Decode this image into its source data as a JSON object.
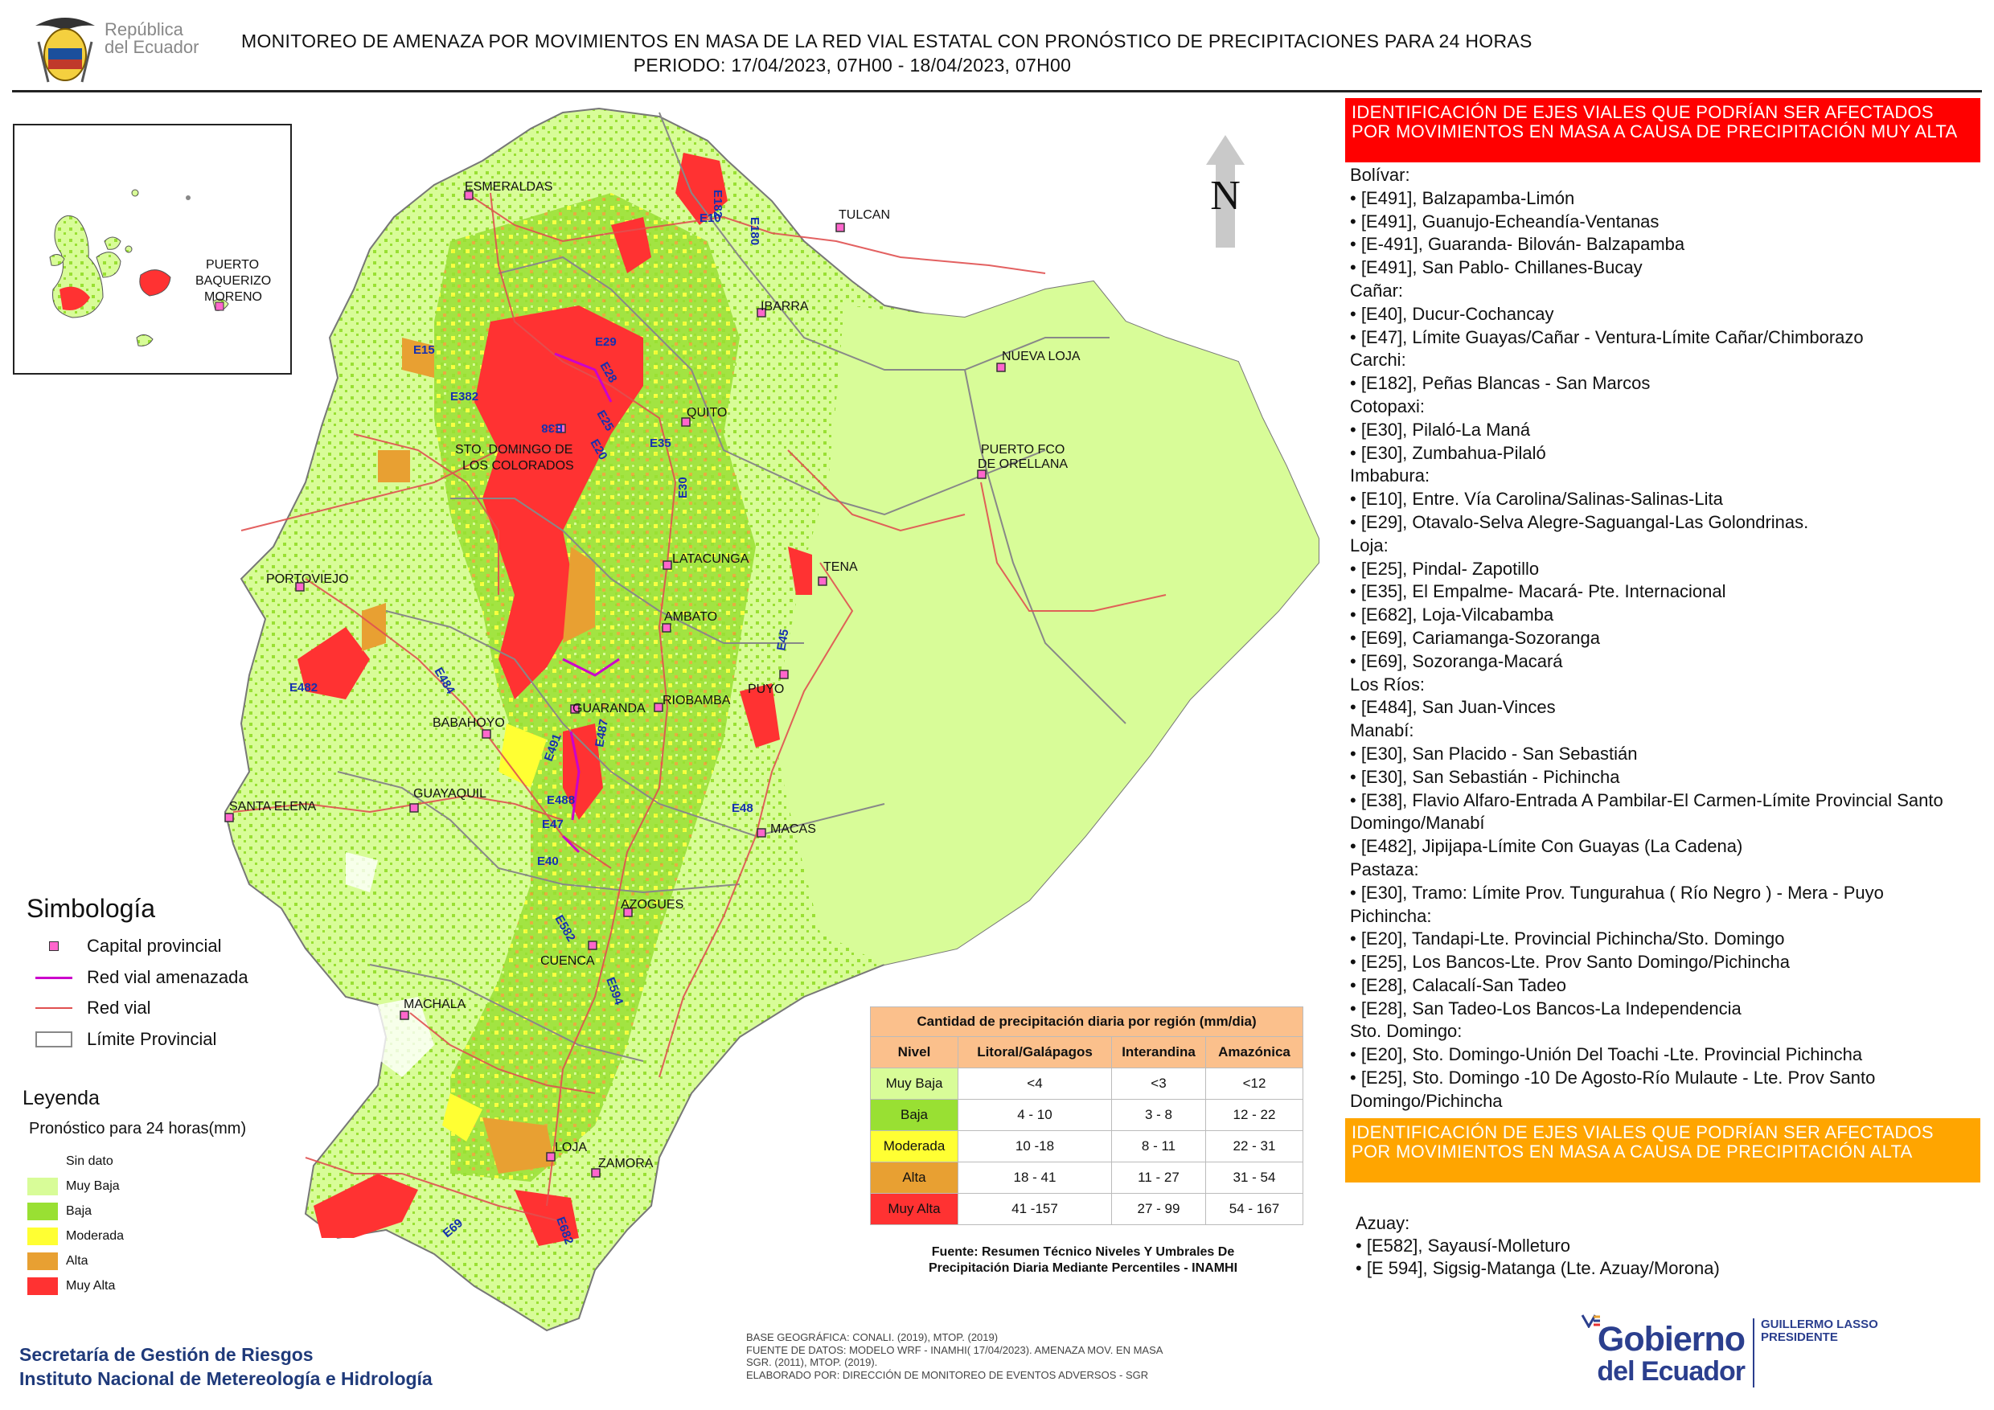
{
  "header": {
    "title_line1": "MONITOREO DE AMENAZA POR MOVIMIENTOS EN MASA DE LA RED VIAL  ESTATAL  CON PRONÓSTICO  DE  PRECIPITACIONES PARA 24 HORAS",
    "title_line2": "PERIODO: 17/04/2023, 07H00 - 18/04/2023, 07H00",
    "logo_text_1": "República",
    "logo_text_2": "del Ecuador"
  },
  "north_label": "N",
  "cities": [
    {
      "name": "ESMERALDAS"
    },
    {
      "name": "TULCAN"
    },
    {
      "name": "IBARRA"
    },
    {
      "name": "NUEVA LOJA"
    },
    {
      "name": "QUITO"
    },
    {
      "name": "PUERTO FCO"
    },
    {
      "name": "DE ORELLANA"
    },
    {
      "name": "STO. DOMINGO DE"
    },
    {
      "name": "LOS COLORADOS"
    },
    {
      "name": "PORTOVIEJO"
    },
    {
      "name": "LATACUNGA"
    },
    {
      "name": "TENA"
    },
    {
      "name": "AMBATO"
    },
    {
      "name": "GUARANDA"
    },
    {
      "name": "RIOBAMBA"
    },
    {
      "name": "PUYO"
    },
    {
      "name": "BABAHOYO"
    },
    {
      "name": "SANTA ELENA"
    },
    {
      "name": "GUAYAQUIL"
    },
    {
      "name": "MACAS"
    },
    {
      "name": "AZOGUES"
    },
    {
      "name": "CUENCA"
    },
    {
      "name": "MACHALA"
    },
    {
      "name": "LOJA"
    },
    {
      "name": "ZAMORA"
    },
    {
      "name": "PUERTO"
    },
    {
      "name": "BAQUERIZO"
    },
    {
      "name": "MORENO"
    }
  ],
  "road_codes": [
    "E182",
    "E10",
    "E180",
    "E15",
    "E29",
    "E28",
    "E382",
    "E38",
    "E25",
    "E20",
    "E35",
    "E30",
    "E45",
    "E482",
    "E484",
    "E491",
    "E487",
    "E488",
    "E47",
    "E40",
    "E48",
    "E582",
    "E594",
    "E69",
    "E682"
  ],
  "highlight_red": {
    "header": "IDENTIFICACIÓN DE EJES VIALES QUE PODRÍAN SER AFECTADOS POR MOVIMIENTOS EN MASA A CAUSA DE PRECIPITACIÓN MUY ALTA",
    "lines": [
      "Bolívar:",
      "• [E491], Balzapamba-Limón",
      "• [E491], Guanujo-Echeandía-Ventanas",
      "• [E-491], Guaranda- Bilován- Balzapamba",
      "• [E491], San Pablo- Chillanes-Bucay",
      "Cañar:",
      "• [E40], Ducur-Cochancay",
      "• [E47], Límite Guayas/Cañar - Ventura-Límite Cañar/Chimborazo",
      "Carchi:",
      "• [E182], Peñas Blancas - San Marcos",
      "Cotopaxi:",
      "• [E30], Pilaló-La Maná",
      "• [E30], Zumbahua-Pilaló",
      "Imbabura:",
      "• [E10], Entre. Vía Carolina/Salinas-Salinas-Lita",
      "• [E29], Otavalo-Selva Alegre-Saguangal-Las Golondrinas.",
      "Loja:",
      "• [E25], Pindal- Zapotillo",
      "• [E35], El Empalme- Macará- Pte. Internacional",
      "• [E682], Loja-Vilcabamba",
      "• [E69], Cariamanga-Sozoranga",
      "• [E69], Sozoranga-Macará",
      "Los Ríos:",
      "• [E484], San Juan-Vinces",
      "Manabí:",
      "• [E30], San Placido - San Sebastián",
      "• [E30], San Sebastián - Pichincha",
      "• [E38], Flavio Alfaro-Entrada A Pambilar-El Carmen-Límite Provincial Santo Domingo/Manabí",
      "• [E482], Jipijapa-Límite Con Guayas (La Cadena)",
      "Pastaza:",
      "• [E30], Tramo: Límite Prov. Tungurahua ( Río Negro ) - Mera - Puyo",
      "Pichincha:",
      "• [E20], Tandapi-Lte. Provincial Pichincha/Sto. Domingo",
      "• [E25], Los Bancos-Lte. Prov Santo Domingo/Pichincha",
      "• [E28], Calacalí-San Tadeo",
      "• [E28], San Tadeo-Los Bancos-La Independencia",
      "Sto. Domingo:",
      "• [E20], Sto. Domingo-Unión Del Toachi -Lte. Provincial Pichincha",
      "• [E25], Sto. Domingo -10 De Agosto-Río Mulaute - Lte. Prov Santo Domingo/Pichincha"
    ]
  },
  "highlight_orange": {
    "header": "IDENTIFICACIÓN DE EJES VIALES QUE PODRÍAN SER AFECTADOS POR MOVIMIENTOS EN MASA A CAUSA DE PRECIPITACIÓN  ALTA",
    "lines": [
      "Azuay:",
      "• [E582], Sayausí-Molleturo",
      "• [E 594], Sigsig-Matanga (Lte. Azuay/Morona)"
    ]
  },
  "simbologia": {
    "title": "Simbología",
    "items": [
      "Capital provincial",
      "Red vial amenazada",
      "Red vial",
      "Límite Provincial"
    ]
  },
  "leyenda": {
    "title": "Leyenda",
    "subtitle": "Pronóstico para 24 horas(mm)",
    "items": [
      {
        "label": "Sin dato",
        "color": "#ffffff"
      },
      {
        "label": "Muy Baja",
        "color": "#d8fc98"
      },
      {
        "label": "Baja",
        "color": "#99e033"
      },
      {
        "label": "Moderada",
        "color": "#ffff33"
      },
      {
        "label": "Alta",
        "color": "#e8a032"
      },
      {
        "label": "Muy Alta",
        "color": "#ff3232"
      }
    ]
  },
  "precip_table": {
    "caption": "Cantidad de precipitación diaria por región (mm/dia)",
    "headers": [
      "Nivel",
      "Litoral/Galápagos",
      "Interandina",
      "Amazónica"
    ],
    "rows": [
      {
        "nivel": "Muy Baja",
        "litoral": "<4",
        "interandina": "<3",
        "amazonica": "<12",
        "color": "#d8fc98"
      },
      {
        "nivel": "Baja",
        "litoral": "4 - 10",
        "interandina": "3 - 8",
        "amazonica": "12 - 22",
        "color": "#99e033"
      },
      {
        "nivel": "Moderada",
        "litoral": "10 -18",
        "interandina": "8 - 11",
        "amazonica": "22 - 31",
        "color": "#ffff33"
      },
      {
        "nivel": "Alta",
        "litoral": "18 - 41",
        "interandina": "11 - 27",
        "amazonica": "31 - 54",
        "color": "#e8a032"
      },
      {
        "nivel": "Muy Alta",
        "litoral": "41 -157",
        "interandina": "27 - 99",
        "amazonica": "54 - 167",
        "color": "#ff3232"
      }
    ],
    "source_line1": "Fuente: Resumen Técnico Niveles Y Umbrales De",
    "source_line2": "Precipitación Diaria Mediante Percentiles - INAMHI"
  },
  "footer": {
    "agency_line1": "Secretaría de Gestión de Riesgos",
    "agency_line2": "Instituto Nacional de Metereología e Hidrología",
    "credit_lines": [
      "BASE GEOGRÁFICA: CONALI. (2019), MTOP. (2019)",
      "FUENTE DE DATOS: MODELO WRF - INAMHI( 17/04/2023).  AMENAZA MOV. EN MASA",
      "SGR. (2011), MTOP. (2019).",
      "ELABORADO POR: DIRECCIÓN DE MONITOREO DE EVENTOS ADVERSOS - SGR"
    ],
    "gob_line1": "Gobierno",
    "gob_line2": "del Ecuador",
    "president_name": "GUILLERMO LASSO",
    "president_title": "PRESIDENTE"
  }
}
